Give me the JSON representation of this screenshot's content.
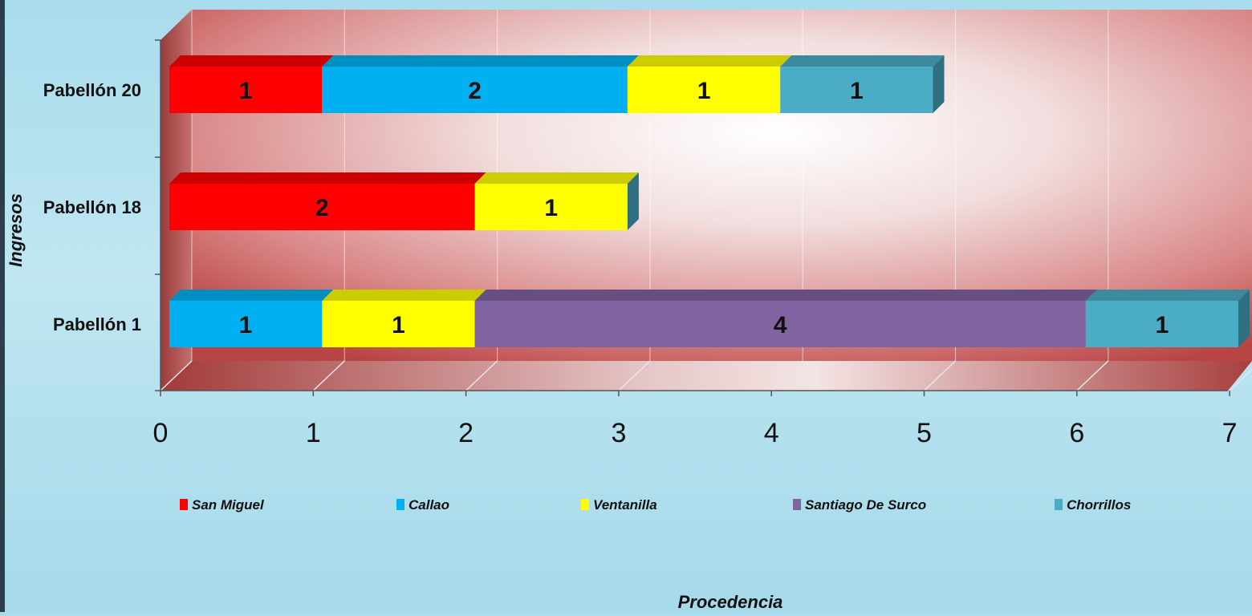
{
  "chart_data": {
    "type": "bar",
    "orientation": "horizontal",
    "stacked": true,
    "three_d": true,
    "categories": [
      "Pabellón 1",
      "Pabellón 18",
      "Pabellón 20"
    ],
    "series": [
      {
        "name": "San Miguel",
        "color": "#ff0000",
        "values": [
          0,
          2,
          1
        ]
      },
      {
        "name": "Callao",
        "color": "#00b0f0",
        "values": [
          1,
          0,
          2
        ]
      },
      {
        "name": "Ventanilla",
        "color": "#ffff00",
        "values": [
          1,
          1,
          1
        ]
      },
      {
        "name": "Santiago De Surco",
        "color": "#8064a2",
        "values": [
          4,
          0,
          0
        ]
      },
      {
        "name": "Chorrillos",
        "color": "#4bacc6",
        "values": [
          1,
          0,
          1
        ]
      }
    ],
    "xlabel": "Procedencia",
    "ylabel": "Ingresos",
    "xlim": [
      0,
      7
    ],
    "xticks": [
      0,
      1,
      2,
      3,
      4,
      5,
      6,
      7
    ],
    "grid": true,
    "legend_position": "bottom"
  }
}
